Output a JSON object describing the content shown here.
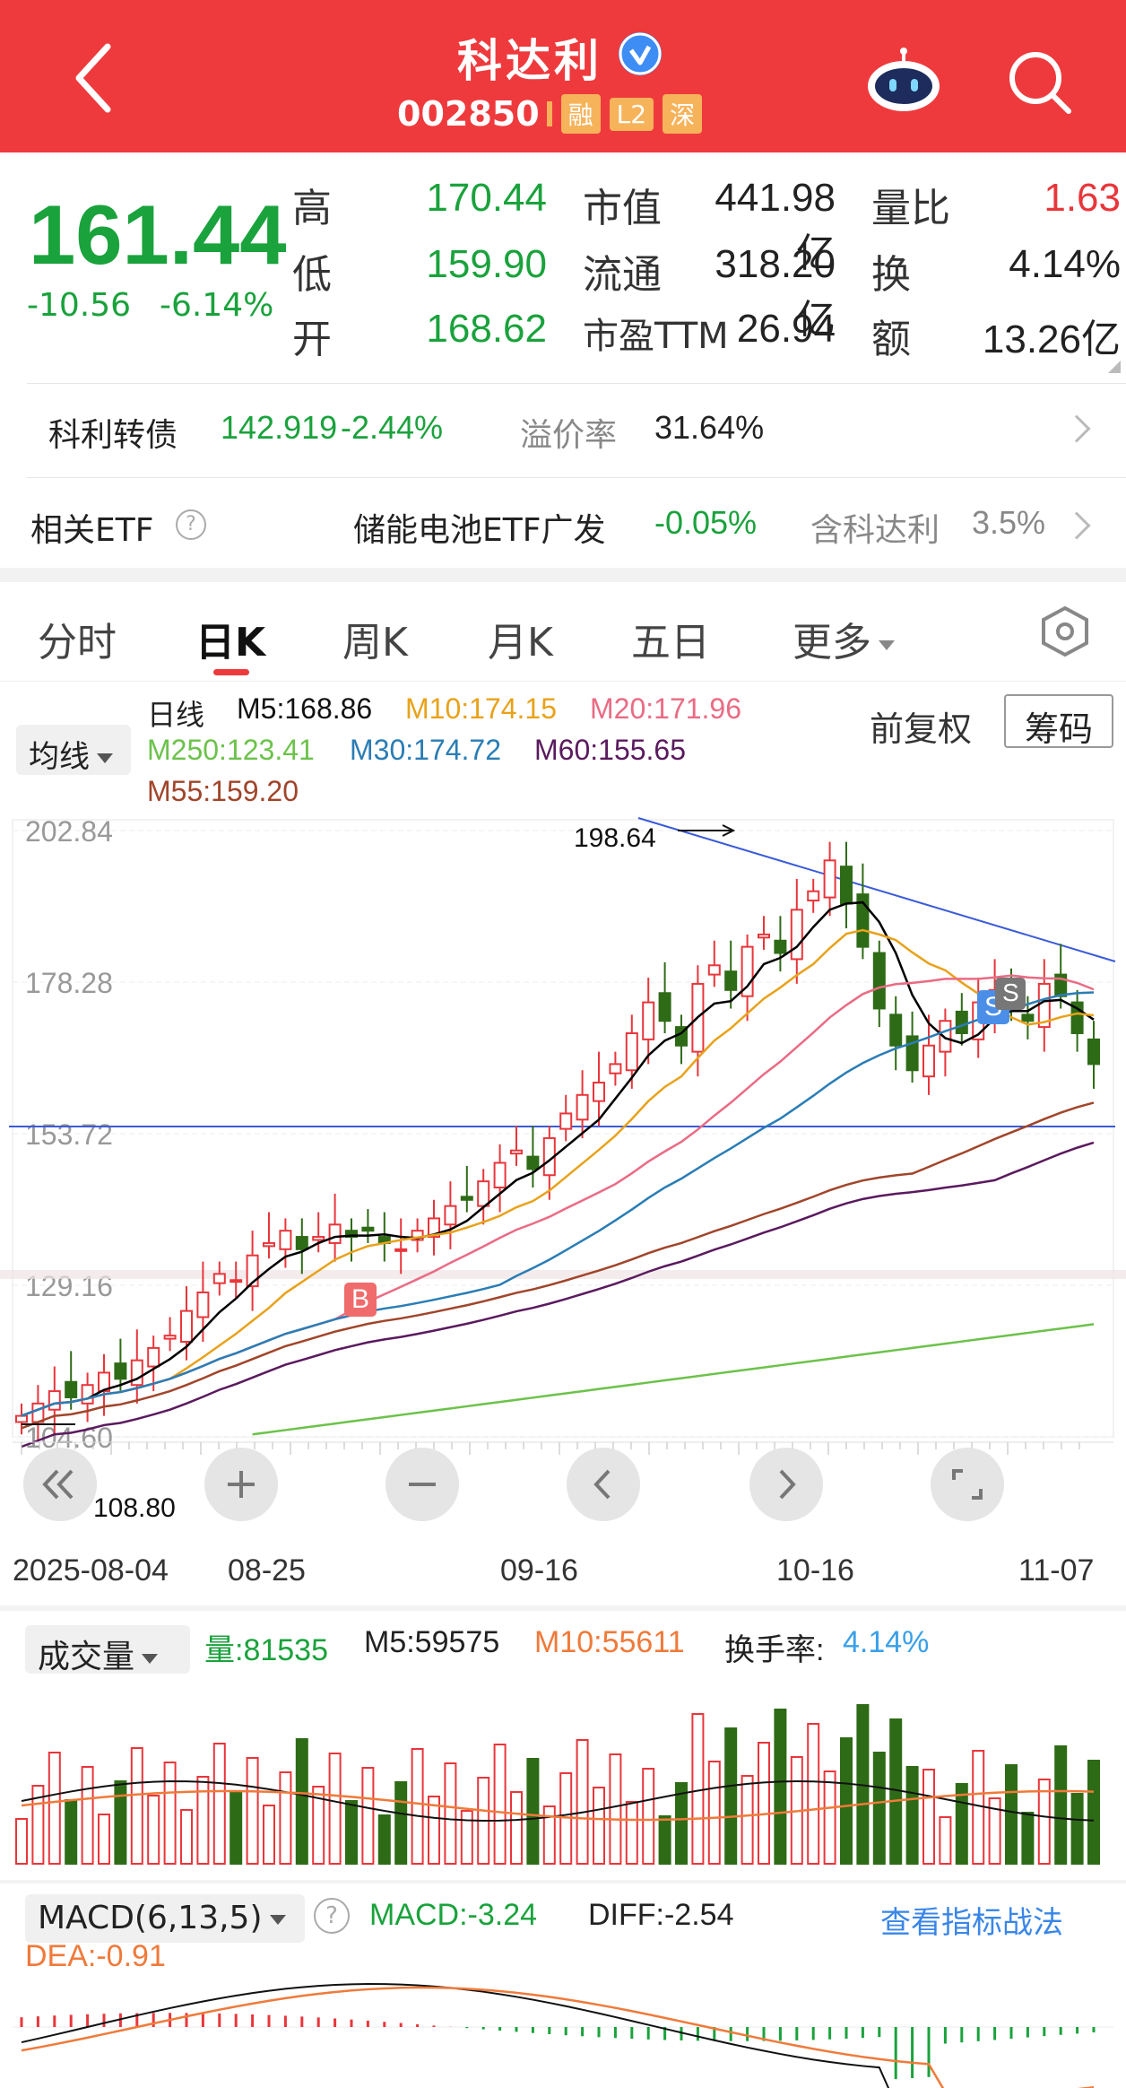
{
  "header": {
    "name": "科达利",
    "code": "002850",
    "tags": [
      "融",
      "L2",
      "深"
    ]
  },
  "quote": {
    "price": "161.44",
    "change": "-10.56",
    "change_pct": "-6.14%",
    "high_label": "高",
    "high": "170.44",
    "low_label": "低",
    "low": "159.90",
    "open_label": "开",
    "open": "168.62",
    "mcap_label": "市值",
    "mcap": "441.98亿",
    "float_label": "流通",
    "float": "318.20亿",
    "pe_label": "市盈TTM",
    "pe": "26.94",
    "vr_label": "量比",
    "vr": "1.63",
    "turnover_label": "换",
    "turnover": "4.14%",
    "amount_label": "额",
    "amount": "13.26亿"
  },
  "bond": {
    "name": "科利转债",
    "price": "142.919",
    "pct": "-2.44%",
    "premium_label": "溢价率",
    "premium": "31.64%"
  },
  "etf": {
    "label": "相关ETF",
    "name": "储能电池ETF广发",
    "pct": "-0.05%",
    "holding_label": "含科达利",
    "holding": "3.5%"
  },
  "tabs": [
    "分时",
    "日K",
    "周K",
    "月K",
    "五日",
    "更多"
  ],
  "ma_legend": {
    "title": "日线",
    "m5": "M5:168.86",
    "m10": "M10:174.15",
    "m20": "M20:171.96",
    "m250": "M250:123.41",
    "m30": "M30:174.72",
    "m60": "M60:155.65",
    "m55": "M55:159.20"
  },
  "ma_toggle": "均线",
  "adjust": "前复权",
  "chips": "筹码",
  "price_axis": [
    "202.84",
    "178.28",
    "153.72",
    "129.16",
    "104.60"
  ],
  "annotations": {
    "high": "198.64",
    "low": "108.80",
    "buy": "B",
    "sell": "S"
  },
  "dates": [
    "2025-08-04",
    "08-25",
    "09-16",
    "10-16",
    "11-07"
  ],
  "volume": {
    "title": "成交量",
    "vol": "量:81535",
    "m5": "M5:59575",
    "m10": "M10:55611",
    "turnover_label": "换手率:",
    "turnover": "4.14%"
  },
  "macd": {
    "title": "MACD(6,13,5)",
    "macd": "MACD:-3.24",
    "diff": "DIFF:-2.54",
    "dea": "DEA:-0.91",
    "link": "查看指标战法"
  },
  "colors": {
    "up": "#e8363b",
    "down": "#2e6b16",
    "header": "#ef3a3d",
    "m5": "#000000",
    "m10": "#e8a21a",
    "m20": "#ea6b84",
    "m30": "#2a7db5",
    "m60": "#5a1a5e",
    "m55": "#a0452a",
    "m250": "#6cc24a"
  },
  "chart_data": {
    "type": "candlestick",
    "x_range": [
      "2025-08-04",
      "2025-11-07"
    ],
    "ylim": [
      104.6,
      202.84
    ],
    "series": [
      {
        "name": "M5",
        "last": 168.86
      },
      {
        "name": "M10",
        "last": 174.15
      },
      {
        "name": "M20",
        "last": 171.96
      },
      {
        "name": "M30",
        "last": 174.72
      },
      {
        "name": "M55",
        "last": 159.2
      },
      {
        "name": "M60",
        "last": 155.65
      },
      {
        "name": "M250",
        "last": 123.41
      }
    ],
    "high": 198.64,
    "low": 108.8,
    "close": 161.44
  }
}
